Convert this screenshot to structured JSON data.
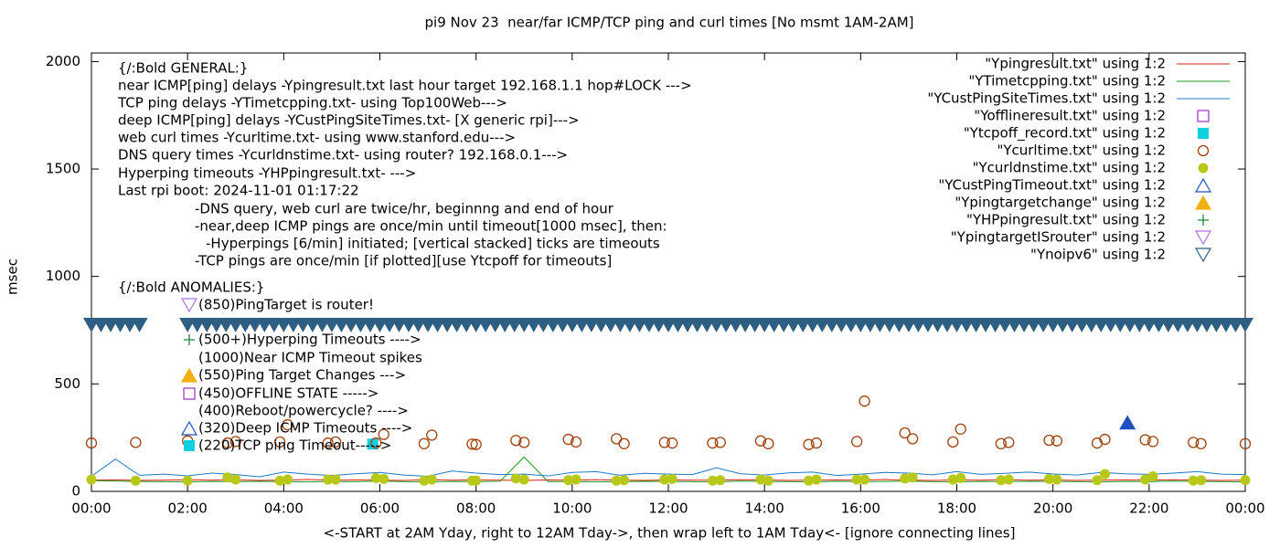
{
  "chart_data": {
    "type": "line",
    "title": "pi9 Nov 23  near/far ICMP/TCP ping and curl times [No msmt 1AM-2AM]",
    "x_label": "<-START at 2AM Yday, right to 12AM Tday->, then wrap left to 1AM Tday<- [ignore connecting lines]",
    "y_label": "msec",
    "xlim": [
      0,
      24
    ],
    "ylim": [
      0,
      2040
    ],
    "xticks": [
      {
        "value": 0,
        "label": "00:00"
      },
      {
        "value": 2,
        "label": "02:00"
      },
      {
        "value": 4,
        "label": "04:00"
      },
      {
        "value": 6,
        "label": "06:00"
      },
      {
        "value": 8,
        "label": "08:00"
      },
      {
        "value": 10,
        "label": "10:00"
      },
      {
        "value": 12,
        "label": "12:00"
      },
      {
        "value": 14,
        "label": "14:00"
      },
      {
        "value": 16,
        "label": "16:00"
      },
      {
        "value": 18,
        "label": "18:00"
      },
      {
        "value": 20,
        "label": "20:00"
      },
      {
        "value": 22,
        "label": "22:00"
      },
      {
        "value": 24,
        "label": "00:00"
      }
    ],
    "yticks": [
      0,
      500,
      1000,
      1500,
      2000
    ],
    "annotations": [
      "{/:Bold GENERAL:}",
      "near ICMP[ping] delays -Ypingresult.txt last hour target 192.168.1.1 hop#LOCK --->",
      "TCP ping delays -YTimetcpping.txt- using Top100Web--->",
      "deep ICMP[ping] delays -YCustPingSiteTimes.txt- [X generic rpi]--->",
      "web curl times -Ycurltime.txt- using www.stanford.edu--->",
      "DNS query times -Ycurldnstime.txt- using router? 192.168.0.1--->",
      "Hyperping timeouts -YHPpingresult.txt- --->",
      "Last rpi boot: 2024-11-01 01:17:22",
      "-DNS query, web curl are twice/hr, beginnng and end of hour",
      "-near,deep ICMP pings are once/min until timeout[1000 msec], then:",
      "-Hyperpings [6/min] initiated; [vertical stacked] ticks are timeouts",
      "-TCP pings are once/min [if plotted][use Ytcpoff for timeouts]",
      "{/:Bold ANOMALIES:}",
      "(850)PingTarget is router!",
      "(500+)Hyperping Timeouts ---->",
      "(1000)Near ICMP Timeout spikes",
      "(550)Ping Target Changes --->",
      "(450)OFFLINE STATE ----->",
      "(400)Reboot/powercycle? ---->",
      "(320)Deep ICMP Timeouts ---->",
      "(220)TCP ping Timeout----->"
    ],
    "series": [
      {
        "name": "\"Ypingresult.txt\" using 1:2",
        "color": "#e0201a",
        "marker": "line",
        "x": [
          0,
          0.5,
          1,
          1.5,
          2,
          2.5,
          3,
          3.5,
          4,
          4.5,
          5,
          5.5,
          6,
          6.5,
          7,
          7.5,
          8,
          8.5,
          9,
          9.5,
          10,
          10.5,
          11,
          11.5,
          12,
          12.5,
          13,
          13.5,
          14,
          14.5,
          15,
          15.5,
          16,
          16.5,
          17,
          17.5,
          18,
          18.5,
          19,
          19.5,
          20,
          20.5,
          21,
          21.5,
          22,
          22.5,
          23,
          23.5,
          24
        ],
        "values": [
          52,
          53,
          51,
          52,
          54,
          52,
          53,
          51,
          52,
          55,
          52,
          53,
          52,
          51,
          54,
          52,
          53,
          52,
          51,
          53,
          52,
          54,
          52,
          51,
          53,
          52,
          52,
          54,
          53,
          51,
          52,
          53,
          52,
          55,
          52,
          51,
          53,
          52,
          54,
          52,
          53,
          51,
          52,
          53,
          52,
          54,
          52,
          51,
          52
        ]
      },
      {
        "name": "\"YTimetcpping.txt\" using 1:2",
        "color": "#1a9a1a",
        "marker": "line",
        "x": [
          0,
          0.5,
          1,
          1.5,
          2,
          2.5,
          3,
          3.5,
          4,
          4.5,
          5,
          5.5,
          6,
          6.5,
          7,
          7.5,
          8,
          8.5,
          9,
          9.5,
          10,
          10.5,
          11,
          11.5,
          12,
          12.5,
          13,
          13.5,
          14,
          14.5,
          15,
          15.5,
          16,
          16.5,
          17,
          17.5,
          18,
          18.5,
          19,
          19.5,
          20,
          20.5,
          21,
          21.5,
          22,
          22.5,
          23,
          23.5,
          24
        ],
        "values": [
          50,
          48,
          46,
          45,
          44,
          46,
          45,
          47,
          45,
          44,
          46,
          45,
          48,
          45,
          44,
          46,
          45,
          47,
          160,
          45,
          46,
          44,
          45,
          47,
          46,
          45,
          44,
          48,
          46,
          45,
          44,
          47,
          45,
          46,
          48,
          45,
          44,
          46,
          45,
          47,
          46,
          45,
          44,
          46,
          45,
          48,
          46,
          45,
          44
        ]
      },
      {
        "name": "\"YCustPingSiteTimes.txt\" using 1:2",
        "color": "#1f78c8",
        "marker": "line",
        "x": [
          0,
          0.5,
          1,
          1.5,
          2,
          2.5,
          3,
          3.5,
          4,
          4.5,
          5,
          5.5,
          6,
          6.5,
          7,
          7.5,
          8,
          8.5,
          9,
          9.5,
          10,
          10.5,
          11,
          11.5,
          12,
          12.5,
          13,
          13.5,
          14,
          14.5,
          15,
          15.5,
          16,
          16.5,
          17,
          17.5,
          18,
          18.5,
          19,
          19.5,
          20,
          20.5,
          21,
          21.5,
          22,
          22.5,
          23,
          23.5,
          24
        ],
        "values": [
          70,
          150,
          75,
          80,
          72,
          85,
          78,
          68,
          90,
          80,
          74,
          82,
          88,
          76,
          70,
          95,
          85,
          78,
          80,
          72,
          88,
          92,
          75,
          84,
          80,
          78,
          110,
          82,
          76,
          86,
          90,
          74,
          80,
          88,
          85,
          77,
          92,
          79,
          84,
          90,
          81,
          76,
          88,
          82,
          79,
          85,
          92,
          80,
          78
        ]
      },
      {
        "name": "\"Yofflineresult.txt\" using 1:2",
        "color": "#9b30c0",
        "marker": "square-open",
        "x": [],
        "values": []
      },
      {
        "name": "\"Ytcpoff_record.txt\" using 1:2",
        "color": "#10d0e0",
        "marker": "square",
        "x": [
          5.85
        ],
        "values": [
          220
        ]
      },
      {
        "name": "\"Ycurltime.txt\" using 1:2",
        "color": "#a0400a",
        "marker": "circle-open",
        "x": [
          0,
          0.92,
          2.0,
          2.83,
          3.0,
          3.92,
          4.08,
          4.92,
          5.08,
          5.92,
          6.08,
          6.92,
          7.08,
          7.92,
          8.0,
          8.83,
          9.0,
          9.92,
          10.08,
          10.92,
          11.08,
          11.92,
          12.08,
          12.92,
          13.08,
          13.92,
          14.08,
          14.92,
          15.08,
          15.92,
          16.08,
          16.92,
          17.08,
          17.92,
          18.08,
          18.92,
          19.08,
          19.92,
          20.08,
          20.92,
          21.08,
          21.92,
          22.08,
          22.92,
          23.08,
          24
        ],
        "values": [
          225,
          228,
          235,
          225,
          232,
          230,
          310,
          225,
          230,
          225,
          265,
          222,
          262,
          220,
          218,
          237,
          228,
          242,
          230,
          245,
          222,
          228,
          225,
          225,
          228,
          235,
          222,
          218,
          225,
          232,
          420,
          272,
          245,
          230,
          290,
          222,
          228,
          238,
          235,
          225,
          242,
          240,
          232,
          228,
          222,
          222
        ]
      },
      {
        "name": "\"Ycurldnstime.txt\" using 1:2",
        "color": "#b8c818",
        "marker": "circle",
        "x": [
          0,
          0.92,
          2.0,
          2.83,
          3.0,
          3.92,
          4.08,
          4.92,
          5.08,
          5.92,
          6.08,
          6.92,
          7.08,
          7.92,
          8.0,
          8.83,
          9.0,
          9.92,
          10.08,
          10.92,
          11.08,
          11.92,
          12.08,
          12.92,
          13.08,
          13.92,
          14.08,
          14.92,
          15.08,
          15.92,
          16.08,
          16.92,
          17.08,
          17.92,
          18.08,
          18.92,
          19.08,
          19.92,
          20.08,
          20.92,
          21.08,
          21.92,
          22.08,
          22.92,
          23.08,
          24
        ],
        "values": [
          55,
          50,
          50,
          65,
          55,
          50,
          55,
          55,
          55,
          62,
          58,
          50,
          55,
          50,
          50,
          60,
          55,
          52,
          55,
          50,
          52,
          55,
          58,
          50,
          52,
          55,
          50,
          50,
          55,
          55,
          55,
          60,
          65,
          55,
          62,
          52,
          55,
          58,
          55,
          52,
          80,
          55,
          70,
          50,
          52,
          52
        ]
      },
      {
        "name": "\"YCustPingTimeout.txt\" using 1:2",
        "color": "#2050c0",
        "marker": "triangle-open",
        "x": [
          21.55
        ],
        "values": [
          320
        ]
      },
      {
        "name": "\"Ypingtargetchange\" using 1:2",
        "color": "#f0b010",
        "marker": "triangle",
        "x": [],
        "values": []
      },
      {
        "name": "\"YHPpingresult.txt\" using 1:2",
        "color": "#1a8a3a",
        "marker": "plus",
        "x": [],
        "values": []
      },
      {
        "name": "\"YpingtargetISrouter\" using 1:2",
        "color": "#b070e0",
        "marker": "triangle-down-open",
        "x": [],
        "values": []
      },
      {
        "name": "\"Ynoipv6\" using 1:2",
        "color": "#2e5f82",
        "marker": "triangle-down-open",
        "x": [
          0,
          0.2,
          0.4,
          0.6,
          0.8,
          1,
          2,
          2.2,
          2.4,
          2.6,
          2.8,
          3,
          3.2,
          3.4,
          3.6,
          3.8,
          4,
          4.2,
          4.4,
          4.6,
          4.8,
          5,
          5.2,
          5.4,
          5.6,
          5.8,
          6,
          6.2,
          6.4,
          6.6,
          6.8,
          7,
          7.2,
          7.4,
          7.6,
          7.8,
          8,
          8.2,
          8.4,
          8.6,
          8.8,
          9,
          9.2,
          9.4,
          9.6,
          9.8,
          10,
          10.2,
          10.4,
          10.6,
          10.8,
          11,
          11.2,
          11.4,
          11.6,
          11.8,
          12,
          12.2,
          12.4,
          12.6,
          12.8,
          13,
          13.2,
          13.4,
          13.6,
          13.8,
          14,
          14.2,
          14.4,
          14.6,
          14.8,
          15,
          15.2,
          15.4,
          15.6,
          15.8,
          16,
          16.2,
          16.4,
          16.6,
          16.8,
          17,
          17.2,
          17.4,
          17.6,
          17.8,
          18,
          18.2,
          18.4,
          18.6,
          18.8,
          19,
          19.2,
          19.4,
          19.6,
          19.8,
          20,
          20.2,
          20.4,
          20.6,
          20.8,
          21,
          21.2,
          21.4,
          21.6,
          21.8,
          22,
          22.2,
          22.4,
          22.6,
          22.8,
          23,
          23.2,
          23.4,
          23.6,
          23.8,
          24
        ],
        "values": [
          775,
          775,
          775,
          775,
          775,
          775,
          775,
          775,
          775,
          775,
          775,
          775,
          775,
          775,
          775,
          775,
          775,
          775,
          775,
          775,
          775,
          775,
          775,
          775,
          775,
          775,
          775,
          775,
          775,
          775,
          775,
          775,
          775,
          775,
          775,
          775,
          775,
          775,
          775,
          775,
          775,
          775,
          775,
          775,
          775,
          775,
          775,
          775,
          775,
          775,
          775,
          775,
          775,
          775,
          775,
          775,
          775,
          775,
          775,
          775,
          775,
          775,
          775,
          775,
          775,
          775,
          775,
          775,
          775,
          775,
          775,
          775,
          775,
          775,
          775,
          775,
          775,
          775,
          775,
          775,
          775,
          775,
          775,
          775,
          775,
          775,
          775,
          775,
          775,
          775,
          775,
          775,
          775,
          775,
          775,
          775,
          775,
          775,
          775,
          775,
          775,
          775,
          775,
          775,
          775,
          775,
          775,
          775,
          775,
          775,
          775,
          775,
          775,
          775,
          775,
          775,
          775
        ]
      }
    ]
  }
}
